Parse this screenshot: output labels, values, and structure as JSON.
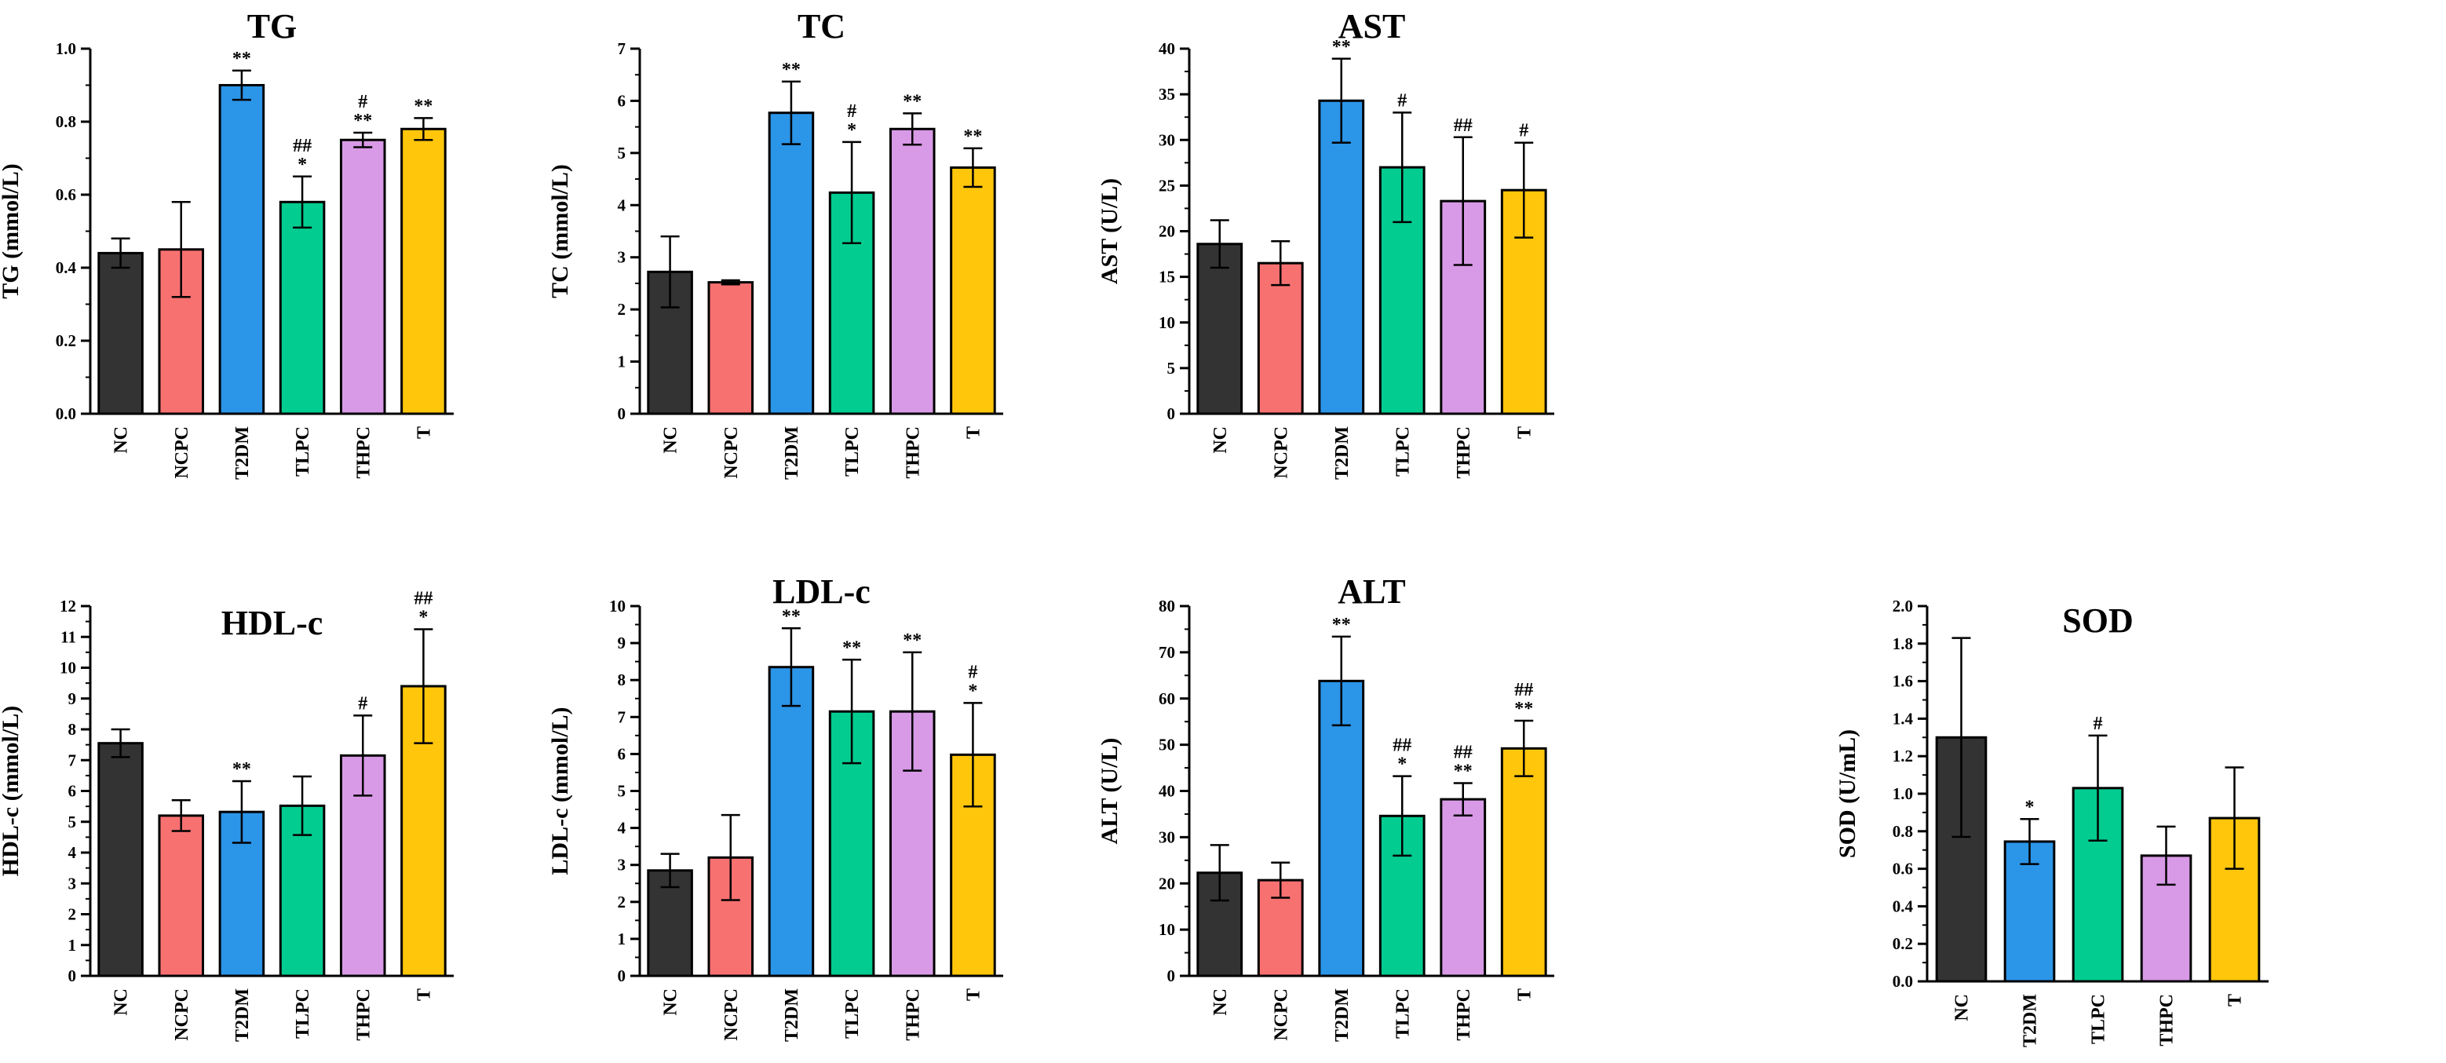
{
  "figure": {
    "colors": {
      "NC": "#333333",
      "NCPC": "#F87171",
      "T2DM": "#2B95E8",
      "TLPC": "#03CC90",
      "THPC": "#D89AE6",
      "T": "#FFC60B"
    }
  },
  "chart_data": [
    {
      "type": "bar",
      "title": "TG",
      "ylabel": "TG (mmol/L)",
      "ylim": [
        0,
        1.0
      ],
      "yticks": [
        0.0,
        0.2,
        0.4,
        0.6,
        0.8,
        1.0
      ],
      "ytick_labels": [
        "0.0",
        "0.2",
        "0.4",
        "0.6",
        "0.8",
        "1.0"
      ],
      "categories": [
        "NC",
        "NCPC",
        "T2DM",
        "TLPC",
        "THPC",
        "T"
      ],
      "values": [
        0.44,
        0.45,
        0.9,
        0.58,
        0.75,
        0.78
      ],
      "errors": [
        0.04,
        0.13,
        0.04,
        0.07,
        0.02,
        0.03
      ],
      "annotations": [
        [],
        [],
        [
          "**"
        ],
        [
          "##",
          "*"
        ],
        [
          "#",
          "**"
        ],
        [
          "**"
        ]
      ]
    },
    {
      "type": "bar",
      "title": "TC",
      "ylabel": "TC (mmol/L)",
      "ylim": [
        0,
        7
      ],
      "yticks": [
        0,
        1,
        2,
        3,
        4,
        5,
        6,
        7
      ],
      "ytick_labels": [
        "0",
        "1",
        "2",
        "3",
        "4",
        "5",
        "6",
        "7"
      ],
      "categories": [
        "NC",
        "NCPC",
        "T2DM",
        "TLPC",
        "THPC",
        "T"
      ],
      "values": [
        2.72,
        2.52,
        5.77,
        4.24,
        5.46,
        4.72
      ],
      "errors": [
        0.68,
        0.04,
        0.6,
        0.97,
        0.3,
        0.37
      ],
      "annotations": [
        [],
        [],
        [
          "**"
        ],
        [
          "#",
          "*"
        ],
        [
          "**"
        ],
        [
          "**"
        ]
      ]
    },
    {
      "type": "bar",
      "title": "AST",
      "ylabel": "AST (U/L)",
      "ylim": [
        0,
        40
      ],
      "yticks": [
        0,
        5,
        10,
        15,
        20,
        25,
        30,
        35,
        40
      ],
      "ytick_labels": [
        "0",
        "5",
        "10",
        "15",
        "20",
        "25",
        "30",
        "35",
        "40"
      ],
      "categories": [
        "NC",
        "NCPC",
        "T2DM",
        "TLPC",
        "THPC",
        "T"
      ],
      "values": [
        18.6,
        16.5,
        34.3,
        27.0,
        23.3,
        24.5
      ],
      "errors": [
        2.6,
        2.4,
        4.6,
        6.0,
        7.0,
        5.2
      ],
      "annotations": [
        [],
        [],
        [
          "**"
        ],
        [
          "#"
        ],
        [
          "##"
        ],
        [
          "#"
        ]
      ]
    },
    {
      "type": "bar",
      "title": "HDL-c",
      "ylabel": "HDL-c (mmol/L)",
      "ylim": [
        0,
        12
      ],
      "yticks": [
        0,
        1,
        2,
        3,
        4,
        5,
        6,
        7,
        8,
        9,
        10,
        11,
        12
      ],
      "ytick_labels": [
        "0",
        "1",
        "2",
        "3",
        "4",
        "5",
        "6",
        "7",
        "8",
        "9",
        "10",
        "11",
        "12"
      ],
      "categories": [
        "NC",
        "NCPC",
        "T2DM",
        "TLPC",
        "THPC",
        "T"
      ],
      "values": [
        7.55,
        5.2,
        5.32,
        5.52,
        7.15,
        9.4
      ],
      "errors": [
        0.45,
        0.5,
        1.0,
        0.95,
        1.3,
        1.85
      ],
      "annotations": [
        [],
        [],
        [
          "**"
        ],
        [],
        [
          "#"
        ],
        [
          "##",
          "*"
        ]
      ]
    },
    {
      "type": "bar",
      "title": "LDL-c",
      "ylabel": "LDL-c (mmol/L)",
      "ylim": [
        0,
        10
      ],
      "yticks": [
        0,
        1,
        2,
        3,
        4,
        5,
        6,
        7,
        8,
        9,
        10
      ],
      "ytick_labels": [
        "0",
        "1",
        "2",
        "3",
        "4",
        "5",
        "6",
        "7",
        "8",
        "9",
        "10"
      ],
      "categories": [
        "NC",
        "NCPC",
        "T2DM",
        "TLPC",
        "THPC",
        "T"
      ],
      "values": [
        2.85,
        3.2,
        8.35,
        7.15,
        7.15,
        5.98
      ],
      "errors": [
        0.45,
        1.15,
        1.05,
        1.4,
        1.6,
        1.4
      ],
      "annotations": [
        [],
        [],
        [
          "**"
        ],
        [
          "**"
        ],
        [
          "**"
        ],
        [
          "#",
          "*"
        ]
      ]
    },
    {
      "type": "bar",
      "title": "ALT",
      "ylabel": "ALT (U/L)",
      "ylim": [
        0,
        80
      ],
      "yticks": [
        0,
        10,
        20,
        30,
        40,
        50,
        60,
        70,
        80
      ],
      "ytick_labels": [
        "0",
        "10",
        "20",
        "30",
        "40",
        "50",
        "60",
        "70",
        "80"
      ],
      "categories": [
        "NC",
        "NCPC",
        "T2DM",
        "TLPC",
        "THPC",
        "T"
      ],
      "values": [
        22.3,
        20.7,
        63.8,
        34.6,
        38.2,
        49.2
      ],
      "errors": [
        6.0,
        3.8,
        9.6,
        8.6,
        3.5,
        6.0
      ],
      "annotations": [
        [],
        [],
        [
          "**"
        ],
        [
          "##",
          "*"
        ],
        [
          "##",
          "**"
        ],
        [
          "##",
          "**"
        ]
      ]
    },
    {
      "type": "bar",
      "title": "SOD",
      "ylabel": "SOD (U/mL)",
      "ylim": [
        0,
        2.0
      ],
      "yticks": [
        0.0,
        0.2,
        0.4,
        0.6,
        0.8,
        1.0,
        1.2,
        1.4,
        1.6,
        1.8,
        2.0
      ],
      "ytick_labels": [
        "0.0",
        "0.2",
        "0.4",
        "0.6",
        "0.8",
        "1.0",
        "1.2",
        "1.4",
        "1.6",
        "1.8",
        "2.0"
      ],
      "categories": [
        "NC",
        "T2DM",
        "TLPC",
        "THPC",
        "T"
      ],
      "values": [
        1.3,
        0.745,
        1.03,
        0.67,
        0.87
      ],
      "errors": [
        0.53,
        0.12,
        0.28,
        0.155,
        0.27
      ],
      "annotations": [
        [],
        [
          "*"
        ],
        [
          "#"
        ],
        [],
        []
      ]
    }
  ]
}
